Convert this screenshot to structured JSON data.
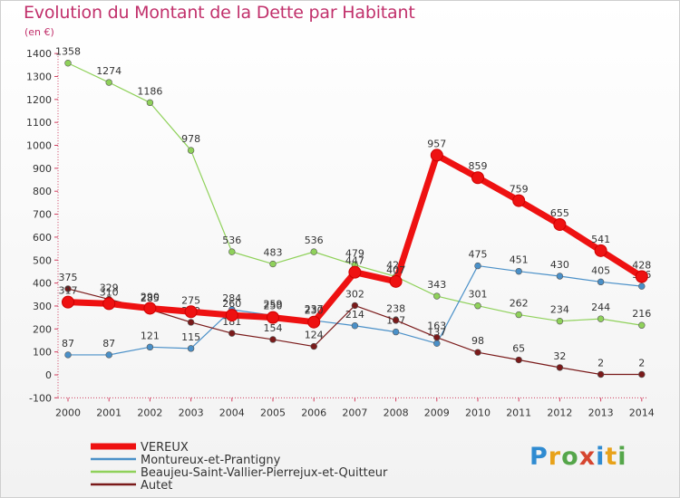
{
  "title": "Evolution du Montant de la Dette par Habitant",
  "subtitle": "(en €)",
  "logo": {
    "letters": [
      "P",
      "r",
      "o",
      "x",
      "i",
      "t",
      "i"
    ],
    "colors": [
      "#2f8bd1",
      "#e8a21a",
      "#55a64a",
      "#d6452f",
      "#2f8bd1",
      "#e8a21a",
      "#55a64a"
    ]
  },
  "chart_data": {
    "type": "line",
    "title": "Evolution du Montant de la Dette par Habitant",
    "ylabel": "(en €)",
    "xlabel": "",
    "categories": [
      "2000",
      "2001",
      "2002",
      "2003",
      "2004",
      "2005",
      "2006",
      "2007",
      "2008",
      "2009",
      "2010",
      "2011",
      "2012",
      "2013",
      "2014"
    ],
    "ylim": [
      -100,
      1400
    ],
    "yticks": [
      -100,
      0,
      100,
      200,
      300,
      400,
      500,
      600,
      700,
      800,
      900,
      1000,
      1100,
      1200,
      1300,
      1400
    ],
    "grid": false,
    "legend_position": "bottom-left",
    "series": [
      {
        "name": "Beaujeu-Saint-Vallier-Pierrejux-et-Quitteur",
        "color": "#8fd15a",
        "values": [
          1358,
          1274,
          1186,
          978,
          536,
          483,
          536,
          479,
          428,
          343,
          301,
          262,
          234,
          244,
          216
        ],
        "labels": [
          "1358",
          "1274",
          "1186",
          "978",
          "536",
          "483",
          "536",
          "479",
          "428",
          "343",
          "301",
          "262",
          "234",
          "244",
          "216"
        ]
      },
      {
        "name": "Montureux-et-Prantigny",
        "color": "#4a90c8",
        "values": [
          87,
          87,
          121,
          115,
          284,
          259,
          237,
          214,
          187,
          137,
          475,
          451,
          430,
          405,
          386
        ],
        "labels": [
          "87",
          "87",
          "121",
          "115",
          "284",
          "259",
          "237",
          "214",
          "187",
          "137",
          "475",
          "451",
          "430",
          "405",
          "386"
        ]
      },
      {
        "name": "Autet",
        "color": "#7a1a1a",
        "values": [
          375,
          329,
          285,
          229,
          181,
          154,
          124,
          302,
          238,
          163,
          98,
          65,
          32,
          2,
          2
        ],
        "labels": [
          "375",
          "329",
          "285",
          "229",
          "181",
          "154",
          "124",
          "302",
          "238",
          "163",
          "98",
          "65",
          "32",
          "2",
          "2"
        ]
      },
      {
        "name": "VEREUX",
        "color": "#ee1111",
        "values": [
          317,
          310,
          290,
          275,
          260,
          250,
          230,
          447,
          407,
          957,
          859,
          759,
          655,
          541,
          428
        ],
        "labels": [
          "317",
          "310",
          "290",
          "275",
          "260",
          "250",
          "230",
          "447",
          "407",
          "957",
          "859",
          "759",
          "655",
          "541",
          "428"
        ]
      }
    ],
    "legend": [
      "VEREUX",
      "Montureux-et-Prantigny",
      "Beaujeu-Saint-Vallier-Pierrejux-et-Quitteur",
      "Autet"
    ]
  }
}
